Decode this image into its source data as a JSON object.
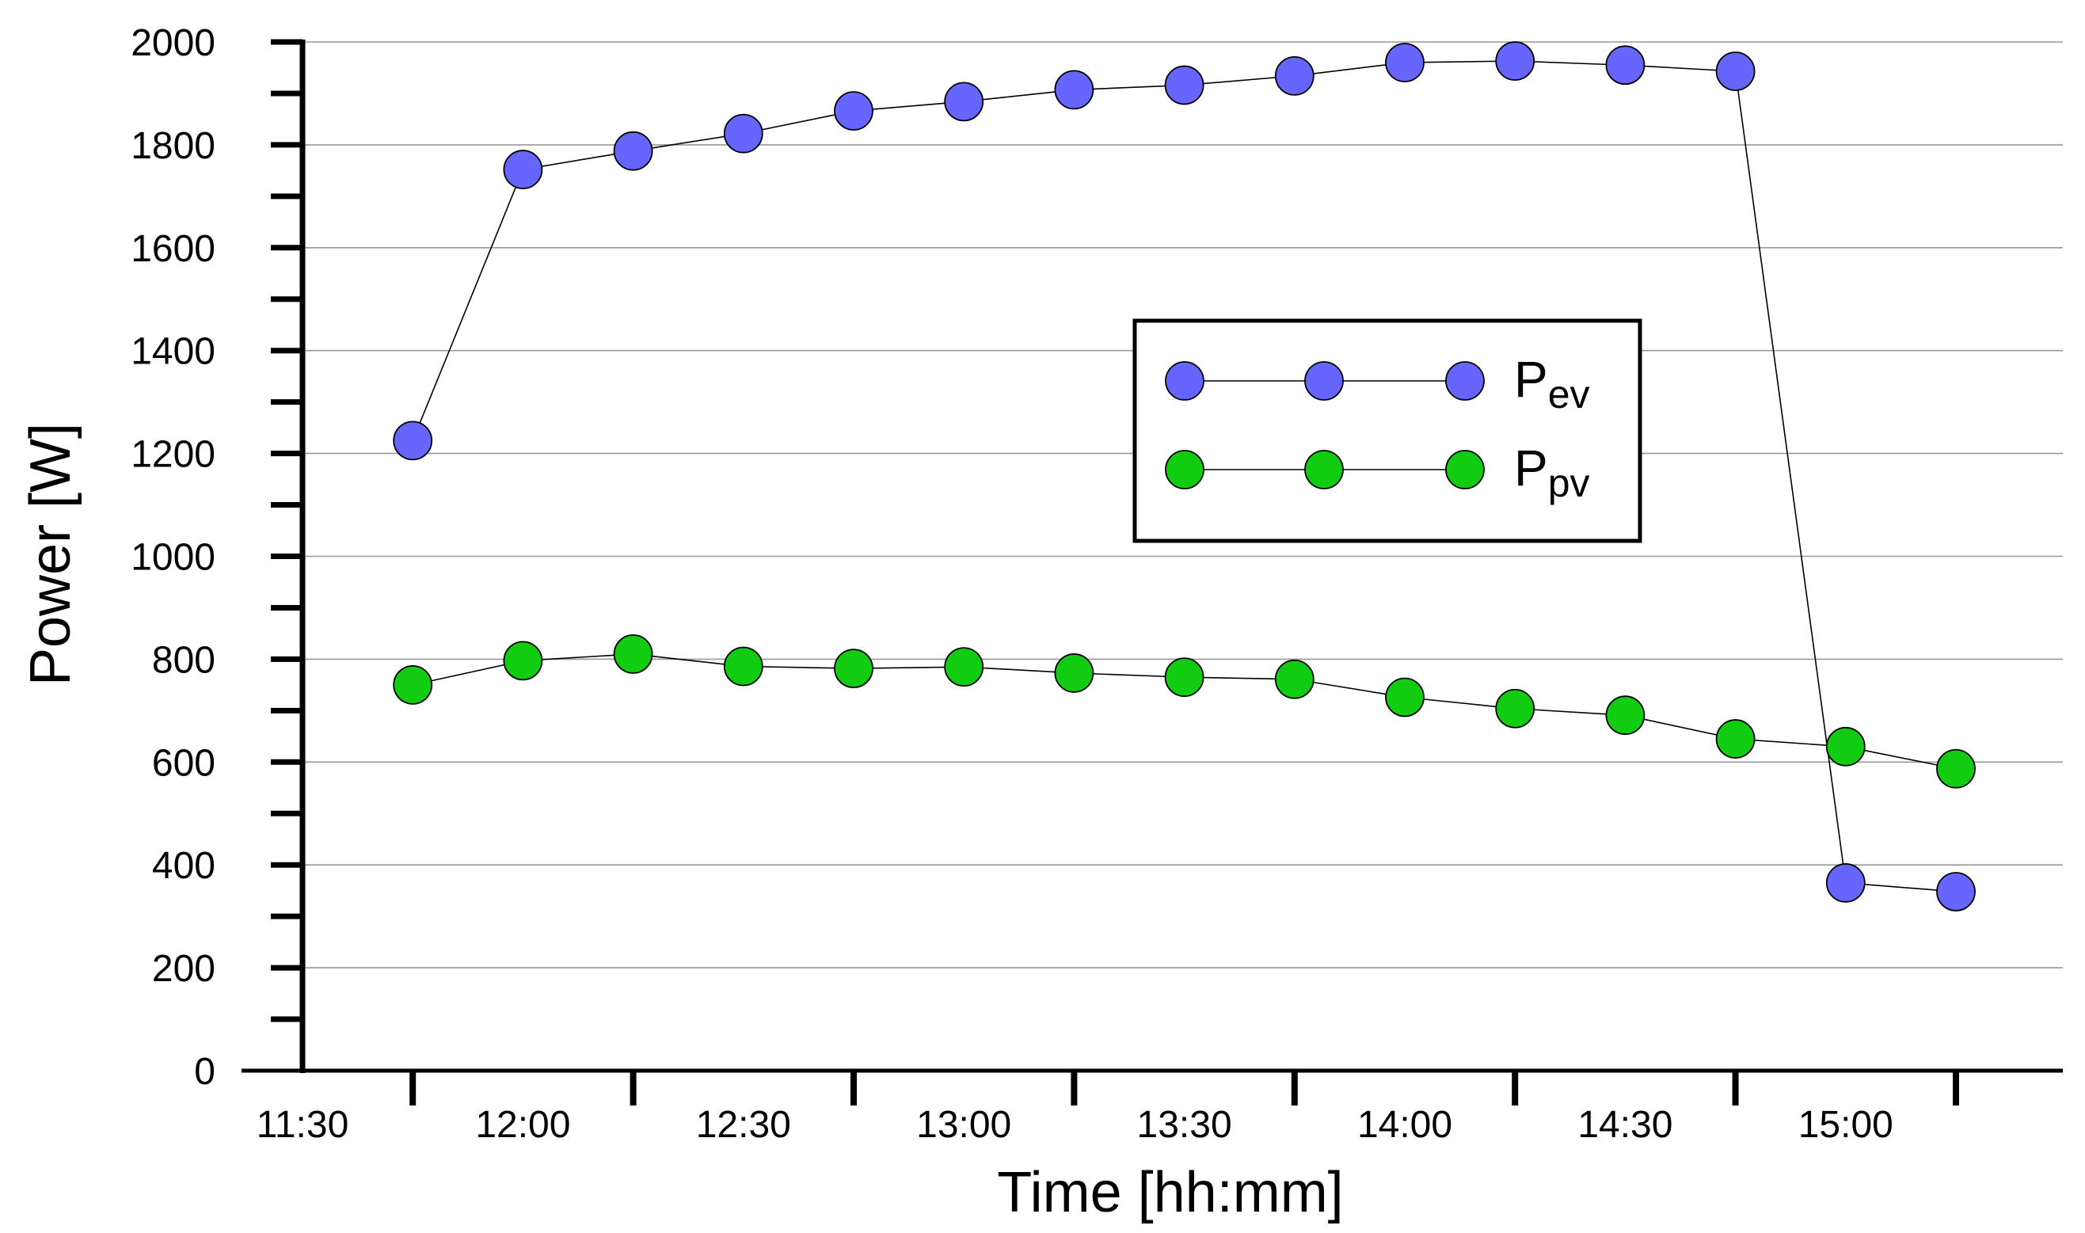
{
  "chart_data": {
    "type": "line",
    "title": "",
    "xlabel": "Time [hh:mm]",
    "ylabel": "Power [W]",
    "ylim": [
      0,
      2000
    ],
    "y_ticks": [
      0,
      200,
      400,
      600,
      800,
      1000,
      1200,
      1400,
      1600,
      1800,
      2000
    ],
    "y_tick_labels": [
      "0",
      "200",
      "400",
      "600",
      "800",
      "1000",
      "1200",
      "1400",
      "1600",
      "1800",
      "2000"
    ],
    "xlim": [
      0,
      16
    ],
    "x_ticks": [
      0,
      2,
      4,
      6,
      8,
      10,
      12,
      14
    ],
    "x_tick_labels": [
      "11:30",
      "12:00",
      "12:30",
      "13:00",
      "13:30",
      "14:00",
      "14:30",
      "15:00"
    ],
    "x_minor_ticks": [
      1,
      3,
      5,
      7,
      9,
      11,
      13,
      15
    ],
    "grid": true,
    "x": [
      1,
      2,
      3,
      4,
      5,
      6,
      7,
      8,
      9,
      10,
      11,
      12,
      13,
      14,
      15
    ],
    "series": [
      {
        "name": "Pev",
        "legend_main": "P",
        "legend_sub": "ev",
        "color": "#6666ff",
        "values": [
          1225,
          1752,
          1788,
          1822,
          1866,
          1884,
          1907,
          1916,
          1934,
          1960,
          1963,
          1955,
          1943,
          365,
          348
        ]
      },
      {
        "name": "Ppv",
        "legend_main": "P",
        "legend_sub": "pv",
        "color": "#11cc11",
        "values": [
          750,
          797,
          810,
          786,
          782,
          785,
          773,
          765,
          761,
          726,
          704,
          691,
          645,
          630,
          587
        ]
      }
    ],
    "legend_position": "center-right"
  }
}
